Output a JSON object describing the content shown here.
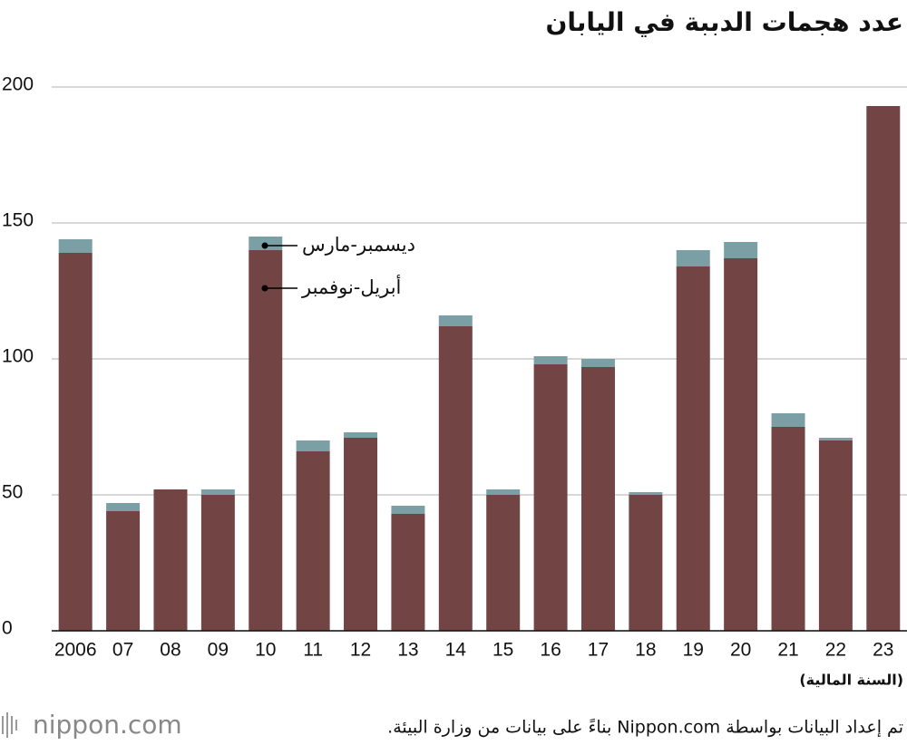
{
  "chart_data": {
    "type": "stacked_bar",
    "title": "عدد هجمات الدببة في اليابان",
    "x_label": "(السنة المالية)",
    "categories": [
      "2006",
      "07",
      "08",
      "09",
      "10",
      "11",
      "12",
      "13",
      "14",
      "15",
      "16",
      "17",
      "18",
      "19",
      "20",
      "21",
      "22",
      "23"
    ],
    "series": [
      {
        "name": "أبريل-نوفمبر",
        "color": "#734444",
        "values": [
          139,
          44,
          52,
          50,
          140,
          66,
          71,
          43,
          112,
          50,
          98,
          97,
          50,
          134,
          137,
          75,
          70,
          193
        ]
      },
      {
        "name": "ديسمبر-مارس",
        "color": "#7aa0a6",
        "values": [
          5,
          3,
          0,
          2,
          5,
          4,
          2,
          3,
          4,
          2,
          3,
          3,
          1,
          6,
          6,
          5,
          1,
          0
        ]
      }
    ],
    "ylim": [
      0,
      200
    ],
    "yticks": [
      0,
      50,
      100,
      150,
      200
    ],
    "grid": true
  },
  "footer": {
    "logo": "nippon.com",
    "source": "تم إعداد البيانات بواسطة Nippon.com بناءً على بيانات من وزارة البيئة."
  }
}
